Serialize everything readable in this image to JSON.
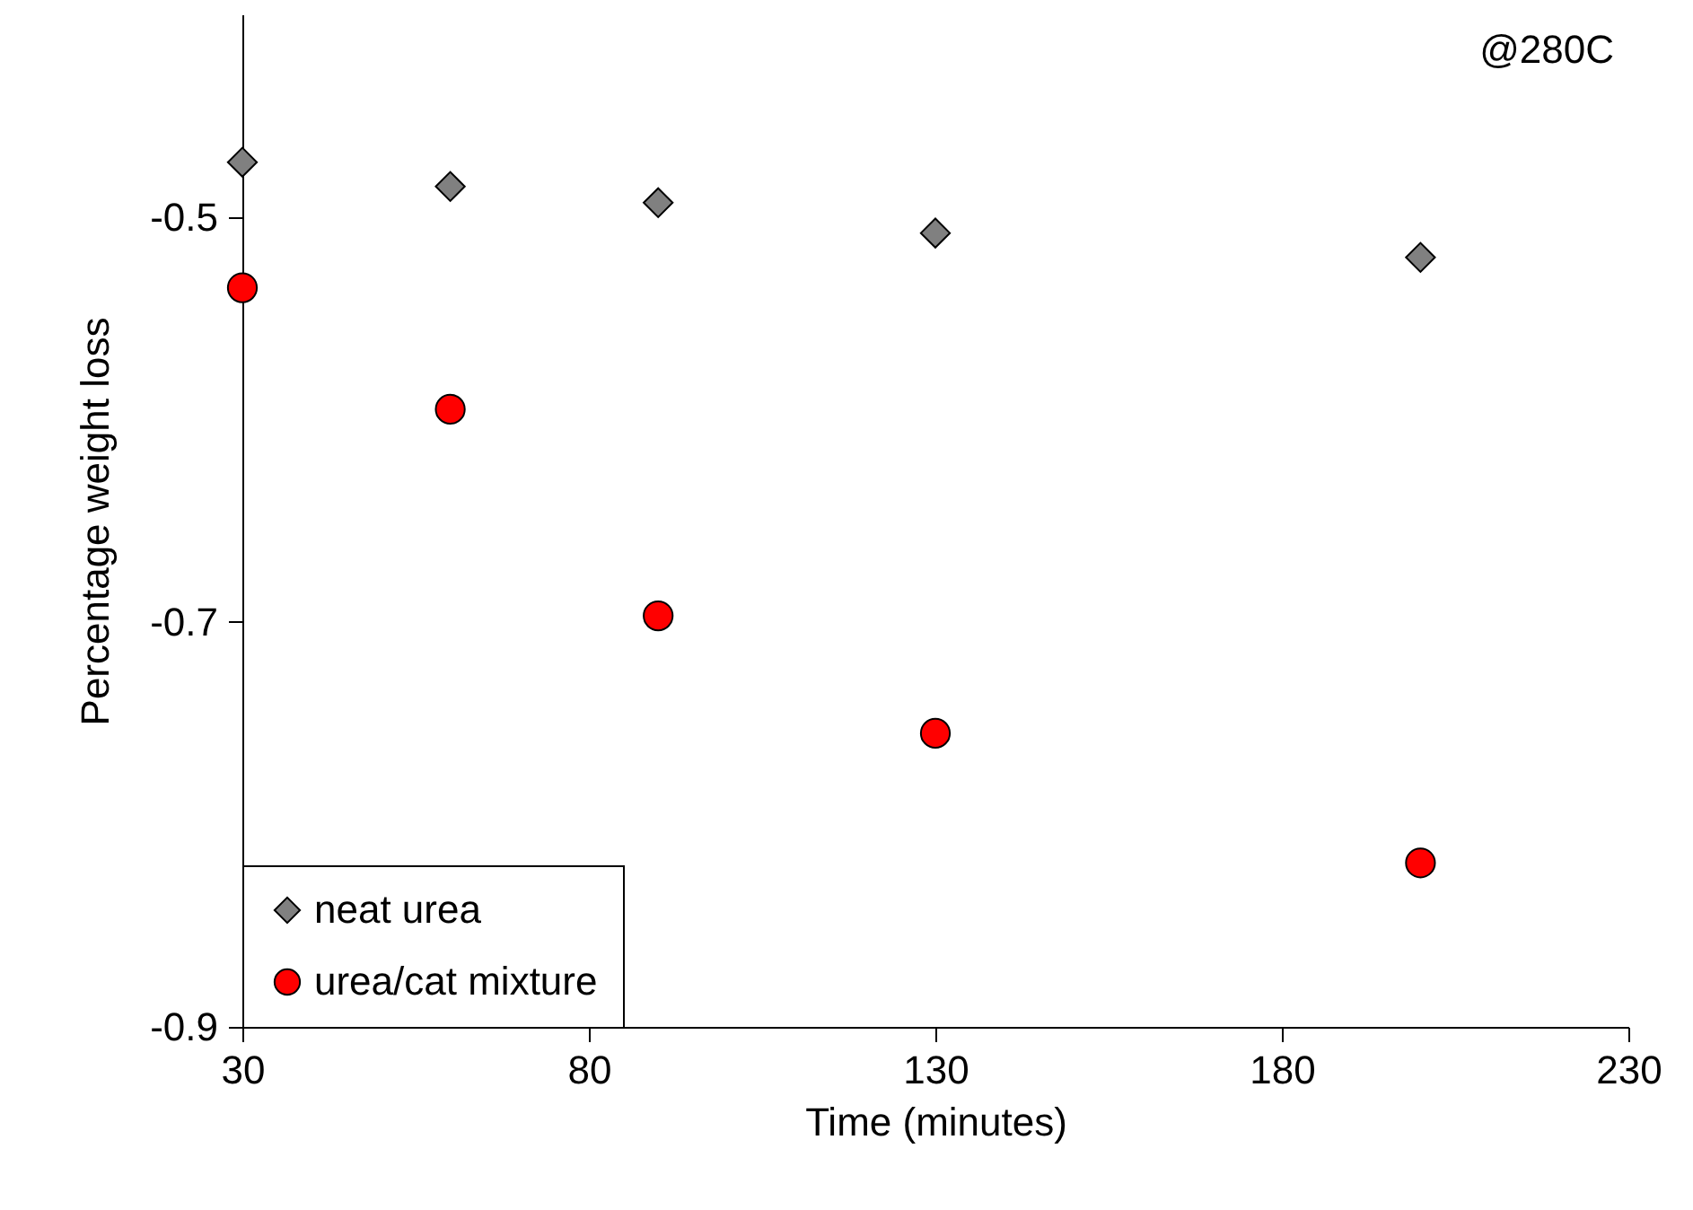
{
  "chart_data": {
    "type": "scatter",
    "xlabel": "Time (minutes)",
    "ylabel": "Percentage weight loss",
    "x": [
      30,
      60,
      90,
      130,
      200
    ],
    "series": [
      {
        "name": "neat urea",
        "color": "#808080",
        "marker": "diamond",
        "values": [
          -0.473,
          -0.485,
          -0.493,
          -0.508,
          -0.52
        ]
      },
      {
        "name": "urea/cat mixture",
        "color": "#ff0000",
        "marker": "circle",
        "values": [
          -0.535,
          -0.595,
          -0.697,
          -0.755,
          -0.819
        ]
      }
    ],
    "xlim": [
      30,
      230
    ],
    "xticks": [
      30,
      80,
      130,
      180,
      230
    ],
    "ylim": [
      -0.9,
      -0.4
    ],
    "yticks": [
      {
        "value": -0.9,
        "label": "-0.9"
      },
      {
        "value": -0.7,
        "label": "-0.7"
      },
      {
        "value": -0.5,
        "label": "-0.5"
      }
    ],
    "annotations": [
      "@280C"
    ],
    "legend": "bottom left",
    "grid": false
  }
}
